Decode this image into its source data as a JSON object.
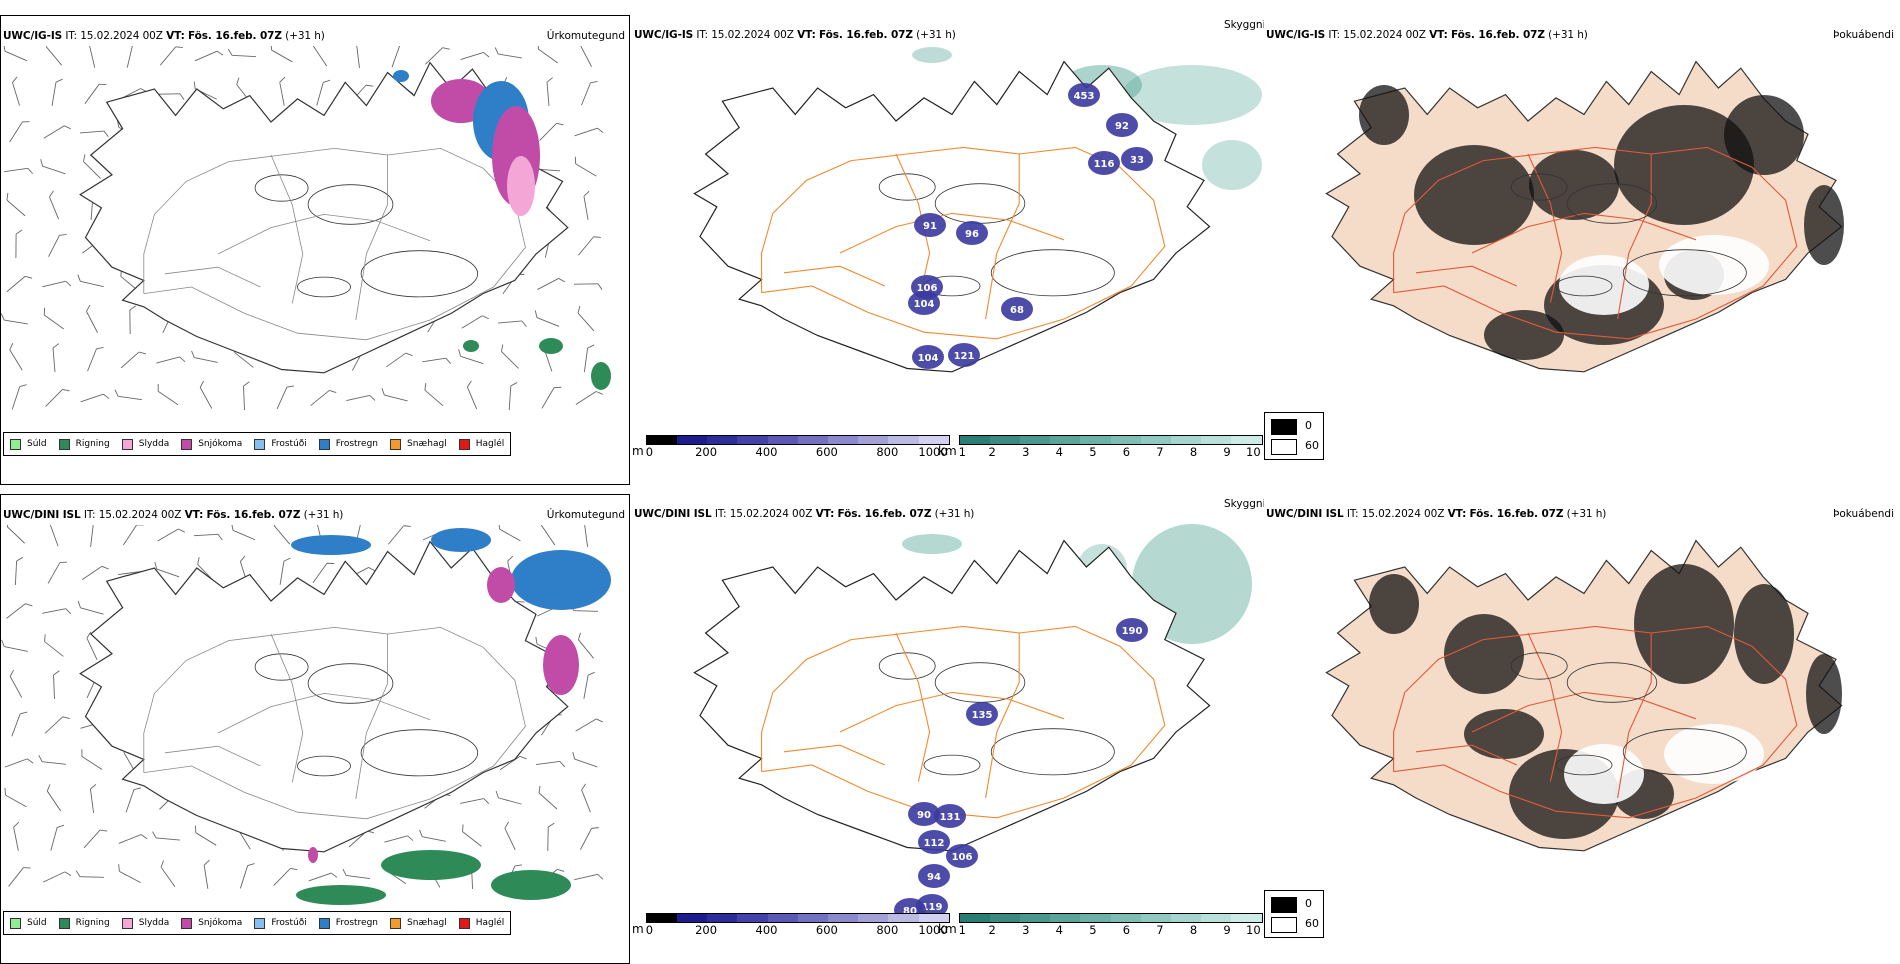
{
  "colors": {
    "sudl": "#90ee90",
    "rigning": "#2e8b57",
    "slydda": "#f4a6d7",
    "snjokoma": "#c14ca8",
    "frostudi": "#87bef0",
    "frostregn": "#2f7fc8",
    "snaehagl": "#f29a2e",
    "haglel": "#e01818",
    "visibility": "#3a3aa0",
    "cloudbase": "#5aa89a",
    "roads": "#f08a30",
    "fogland": "#f5dcc8",
    "fogroads": "#e05a3a"
  },
  "rows": [
    {
      "precip": {
        "model": "UWC/IG-IS",
        "it_label": "IT:",
        "it_value": "15.02.2024 00Z",
        "vt_label": "VT:",
        "vt_value": "Fös. 16.feb. 07Z",
        "lead": "(+31 h)",
        "param": "Úrkomutegund"
      },
      "vis": {
        "model": "UWC/IG-IS",
        "it_label": "IT:",
        "it_value": "15.02.2024 00Z",
        "vt_label": "VT:",
        "vt_value": "Fös. 16.feb. 07Z",
        "lead": "(+31 h)",
        "param": "Skyggni",
        "labels": [
          "453",
          "92",
          "116",
          "33",
          "91",
          "96",
          "106",
          "104",
          "68",
          "104",
          "121"
        ]
      },
      "fog": {
        "model": "UWC/IG-IS",
        "it_label": "IT:",
        "it_value": "15.02.2024 00Z",
        "vt_label": "VT:",
        "vt_value": "Fös. 16.feb. 07Z",
        "lead": "(+31 h)",
        "param": "Þokuábendi"
      }
    },
    {
      "precip": {
        "model": "UWC/DINI ISL",
        "it_label": "IT:",
        "it_value": "15.02.2024 00Z",
        "vt_label": "VT:",
        "vt_value": "Fös. 16.feb. 07Z",
        "lead": "(+31 h)",
        "param": "Úrkomutegund"
      },
      "vis": {
        "model": "UWC/DINI ISL",
        "it_label": "IT:",
        "it_value": "15.02.2024 00Z",
        "vt_label": "VT:",
        "vt_value": "Fös. 16.feb. 07Z",
        "lead": "(+31 h)",
        "param": "Skyggni",
        "labels": [
          "190",
          "135",
          "90",
          "131",
          "112",
          "106",
          "94",
          "119",
          "80"
        ]
      },
      "fog": {
        "model": "UWC/DINI ISL",
        "it_label": "IT:",
        "it_value": "15.02.2024 00Z",
        "vt_label": "VT:",
        "vt_value": "Fös. 16.feb. 07Z",
        "lead": "(+31 h)",
        "param": "Þokuábendi"
      }
    }
  ],
  "precip_legend": [
    {
      "label": "Súld",
      "color": "#90ee90"
    },
    {
      "label": "Rigning",
      "color": "#2e8b57"
    },
    {
      "label": "Slydda",
      "color": "#f4a6d7"
    },
    {
      "label": "Snjókoma",
      "color": "#c14ca8"
    },
    {
      "label": "Frostúði",
      "color": "#87bef0"
    },
    {
      "label": "Frostregn",
      "color": "#2f7fc8"
    },
    {
      "label": "Snæhagl",
      "color": "#f29a2e"
    },
    {
      "label": "Haglél",
      "color": "#e01818"
    }
  ],
  "vis_scale": {
    "unit": "m",
    "ticks": [
      "0",
      "200",
      "400",
      "600",
      "800",
      "1000"
    ],
    "colors": [
      "#000000",
      "#1c1c8c",
      "#2d2d9a",
      "#4242a8",
      "#5a5ab4",
      "#7272c0",
      "#8a8acc",
      "#a2a2d8",
      "#babae4",
      "#d2d2f0"
    ]
  },
  "cloud_scale": {
    "unit": "km",
    "ticks": [
      "1",
      "2",
      "3",
      "4",
      "5",
      "6",
      "7",
      "8",
      "9",
      "10"
    ],
    "colors": [
      "#2a7d72",
      "#3a8a80",
      "#4a978d",
      "#5aa49a",
      "#6bb1a7",
      "#7dbdb4",
      "#90c9c1",
      "#a4d5ce",
      "#b8e1db",
      "#cdece8"
    ]
  },
  "fog_scale": {
    "high": "0",
    "low": "60"
  }
}
